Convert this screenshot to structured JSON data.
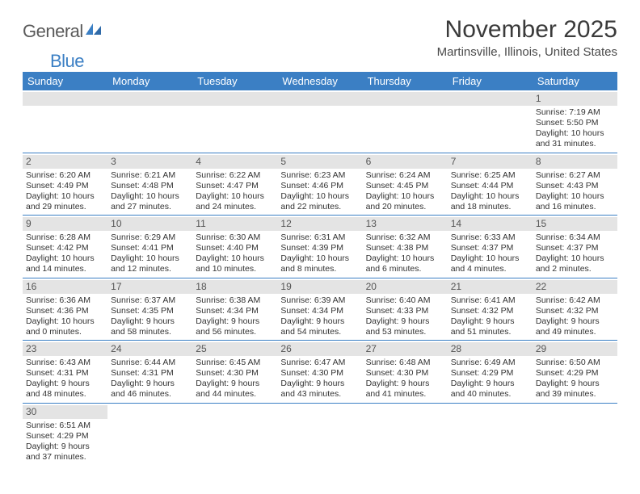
{
  "logo": {
    "text_part1": "General",
    "text_part2": "Blue",
    "color_gray": "#5a5a5a",
    "color_blue": "#3b7fc4"
  },
  "title": "November 2025",
  "location": "Martinsville, Illinois, United States",
  "colors": {
    "header_bg": "#3b7fc4",
    "daynum_bg": "#e4e4e4",
    "row_border": "#3b7fc4",
    "text": "#333333"
  },
  "day_headers": [
    "Sunday",
    "Monday",
    "Tuesday",
    "Wednesday",
    "Thursday",
    "Friday",
    "Saturday"
  ],
  "weeks": [
    [
      {
        "n": "",
        "empty": true
      },
      {
        "n": "",
        "empty": true
      },
      {
        "n": "",
        "empty": true
      },
      {
        "n": "",
        "empty": true
      },
      {
        "n": "",
        "empty": true
      },
      {
        "n": "",
        "empty": true
      },
      {
        "n": "1",
        "sunrise": "Sunrise: 7:19 AM",
        "sunset": "Sunset: 5:50 PM",
        "daylight": "Daylight: 10 hours and 31 minutes."
      }
    ],
    [
      {
        "n": "2",
        "sunrise": "Sunrise: 6:20 AM",
        "sunset": "Sunset: 4:49 PM",
        "daylight": "Daylight: 10 hours and 29 minutes."
      },
      {
        "n": "3",
        "sunrise": "Sunrise: 6:21 AM",
        "sunset": "Sunset: 4:48 PM",
        "daylight": "Daylight: 10 hours and 27 minutes."
      },
      {
        "n": "4",
        "sunrise": "Sunrise: 6:22 AM",
        "sunset": "Sunset: 4:47 PM",
        "daylight": "Daylight: 10 hours and 24 minutes."
      },
      {
        "n": "5",
        "sunrise": "Sunrise: 6:23 AM",
        "sunset": "Sunset: 4:46 PM",
        "daylight": "Daylight: 10 hours and 22 minutes."
      },
      {
        "n": "6",
        "sunrise": "Sunrise: 6:24 AM",
        "sunset": "Sunset: 4:45 PM",
        "daylight": "Daylight: 10 hours and 20 minutes."
      },
      {
        "n": "7",
        "sunrise": "Sunrise: 6:25 AM",
        "sunset": "Sunset: 4:44 PM",
        "daylight": "Daylight: 10 hours and 18 minutes."
      },
      {
        "n": "8",
        "sunrise": "Sunrise: 6:27 AM",
        "sunset": "Sunset: 4:43 PM",
        "daylight": "Daylight: 10 hours and 16 minutes."
      }
    ],
    [
      {
        "n": "9",
        "sunrise": "Sunrise: 6:28 AM",
        "sunset": "Sunset: 4:42 PM",
        "daylight": "Daylight: 10 hours and 14 minutes."
      },
      {
        "n": "10",
        "sunrise": "Sunrise: 6:29 AM",
        "sunset": "Sunset: 4:41 PM",
        "daylight": "Daylight: 10 hours and 12 minutes."
      },
      {
        "n": "11",
        "sunrise": "Sunrise: 6:30 AM",
        "sunset": "Sunset: 4:40 PM",
        "daylight": "Daylight: 10 hours and 10 minutes."
      },
      {
        "n": "12",
        "sunrise": "Sunrise: 6:31 AM",
        "sunset": "Sunset: 4:39 PM",
        "daylight": "Daylight: 10 hours and 8 minutes."
      },
      {
        "n": "13",
        "sunrise": "Sunrise: 6:32 AM",
        "sunset": "Sunset: 4:38 PM",
        "daylight": "Daylight: 10 hours and 6 minutes."
      },
      {
        "n": "14",
        "sunrise": "Sunrise: 6:33 AM",
        "sunset": "Sunset: 4:37 PM",
        "daylight": "Daylight: 10 hours and 4 minutes."
      },
      {
        "n": "15",
        "sunrise": "Sunrise: 6:34 AM",
        "sunset": "Sunset: 4:37 PM",
        "daylight": "Daylight: 10 hours and 2 minutes."
      }
    ],
    [
      {
        "n": "16",
        "sunrise": "Sunrise: 6:36 AM",
        "sunset": "Sunset: 4:36 PM",
        "daylight": "Daylight: 10 hours and 0 minutes."
      },
      {
        "n": "17",
        "sunrise": "Sunrise: 6:37 AM",
        "sunset": "Sunset: 4:35 PM",
        "daylight": "Daylight: 9 hours and 58 minutes."
      },
      {
        "n": "18",
        "sunrise": "Sunrise: 6:38 AM",
        "sunset": "Sunset: 4:34 PM",
        "daylight": "Daylight: 9 hours and 56 minutes."
      },
      {
        "n": "19",
        "sunrise": "Sunrise: 6:39 AM",
        "sunset": "Sunset: 4:34 PM",
        "daylight": "Daylight: 9 hours and 54 minutes."
      },
      {
        "n": "20",
        "sunrise": "Sunrise: 6:40 AM",
        "sunset": "Sunset: 4:33 PM",
        "daylight": "Daylight: 9 hours and 53 minutes."
      },
      {
        "n": "21",
        "sunrise": "Sunrise: 6:41 AM",
        "sunset": "Sunset: 4:32 PM",
        "daylight": "Daylight: 9 hours and 51 minutes."
      },
      {
        "n": "22",
        "sunrise": "Sunrise: 6:42 AM",
        "sunset": "Sunset: 4:32 PM",
        "daylight": "Daylight: 9 hours and 49 minutes."
      }
    ],
    [
      {
        "n": "23",
        "sunrise": "Sunrise: 6:43 AM",
        "sunset": "Sunset: 4:31 PM",
        "daylight": "Daylight: 9 hours and 48 minutes."
      },
      {
        "n": "24",
        "sunrise": "Sunrise: 6:44 AM",
        "sunset": "Sunset: 4:31 PM",
        "daylight": "Daylight: 9 hours and 46 minutes."
      },
      {
        "n": "25",
        "sunrise": "Sunrise: 6:45 AM",
        "sunset": "Sunset: 4:30 PM",
        "daylight": "Daylight: 9 hours and 44 minutes."
      },
      {
        "n": "26",
        "sunrise": "Sunrise: 6:47 AM",
        "sunset": "Sunset: 4:30 PM",
        "daylight": "Daylight: 9 hours and 43 minutes."
      },
      {
        "n": "27",
        "sunrise": "Sunrise: 6:48 AM",
        "sunset": "Sunset: 4:30 PM",
        "daylight": "Daylight: 9 hours and 41 minutes."
      },
      {
        "n": "28",
        "sunrise": "Sunrise: 6:49 AM",
        "sunset": "Sunset: 4:29 PM",
        "daylight": "Daylight: 9 hours and 40 minutes."
      },
      {
        "n": "29",
        "sunrise": "Sunrise: 6:50 AM",
        "sunset": "Sunset: 4:29 PM",
        "daylight": "Daylight: 9 hours and 39 minutes."
      }
    ],
    [
      {
        "n": "30",
        "sunrise": "Sunrise: 6:51 AM",
        "sunset": "Sunset: 4:29 PM",
        "daylight": "Daylight: 9 hours and 37 minutes."
      },
      {
        "n": "",
        "empty": true
      },
      {
        "n": "",
        "empty": true
      },
      {
        "n": "",
        "empty": true
      },
      {
        "n": "",
        "empty": true
      },
      {
        "n": "",
        "empty": true
      },
      {
        "n": "",
        "empty": true
      }
    ]
  ]
}
